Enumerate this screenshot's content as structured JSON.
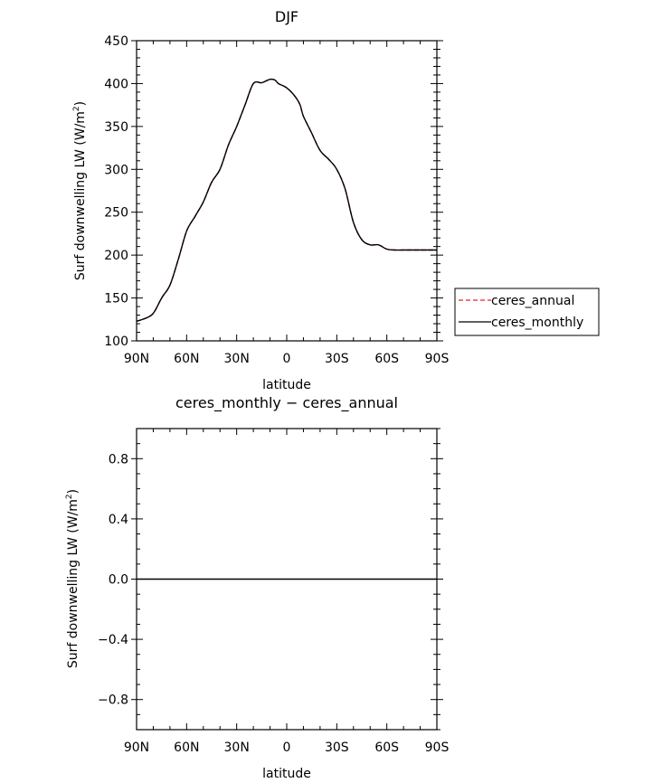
{
  "chart_data": [
    {
      "type": "line",
      "title": "DJF",
      "xlabel": "latitude",
      "ylabel": "Surf downwelling LW (W/m",
      "ylabel_sup": "2",
      "ylabel_close": ")",
      "xlim": [
        90,
        -90
      ],
      "ylim": [
        100,
        450
      ],
      "x_ticks": [
        90,
        60,
        30,
        0,
        -30,
        -60,
        -90
      ],
      "x_tick_labels": [
        "90N",
        "60N",
        "30N",
        "0",
        "30S",
        "60S",
        "90S"
      ],
      "y_ticks": [
        100,
        150,
        200,
        250,
        300,
        350,
        400,
        450
      ],
      "y_tick_labels": [
        "100",
        "150",
        "200",
        "250",
        "300",
        "350",
        "400",
        "450"
      ],
      "legend_placement": "right",
      "x": [
        90,
        85,
        80,
        75,
        70,
        65,
        60,
        55,
        50,
        45,
        40,
        35,
        30,
        25,
        20,
        15,
        10,
        7,
        5,
        0,
        -5,
        -8,
        -10,
        -15,
        -20,
        -25,
        -30,
        -35,
        -40,
        -45,
        -50,
        -55,
        -60,
        -65,
        -70,
        -75,
        -80,
        -85,
        -88,
        -90
      ],
      "series": [
        {
          "name": "ceres_annual",
          "color": "#e8202a",
          "dash": "dashed",
          "values": [
            123,
            126,
            132,
            150,
            165,
            195,
            228,
            245,
            262,
            285,
            300,
            328,
            350,
            375,
            400,
            401,
            405,
            404,
            400,
            395,
            385,
            375,
            362,
            342,
            322,
            312,
            300,
            277,
            238,
            218,
            212,
            212,
            207,
            206,
            206,
            206,
            206,
            206,
            206,
            206
          ]
        },
        {
          "name": "ceres_monthly",
          "color": "#000000",
          "dash": "solid",
          "values": [
            123,
            126,
            132,
            150,
            165,
            195,
            228,
            245,
            262,
            285,
            300,
            328,
            350,
            375,
            400,
            401,
            405,
            404,
            400,
            395,
            385,
            375,
            362,
            342,
            322,
            312,
            300,
            277,
            238,
            218,
            212,
            212,
            207,
            206,
            206,
            206,
            206,
            206,
            206,
            206
          ]
        }
      ]
    },
    {
      "type": "line",
      "title": "ceres_monthly − ceres_annual",
      "xlabel": "latitude",
      "ylabel": "Surf downwelling LW (W/m",
      "ylabel_sup": "2",
      "ylabel_close": ")",
      "xlim": [
        90,
        -90
      ],
      "ylim": [
        -1,
        1
      ],
      "x_ticks": [
        90,
        60,
        30,
        0,
        -30,
        -60,
        -90
      ],
      "x_tick_labels": [
        "90N",
        "60N",
        "30N",
        "0",
        "30S",
        "60S",
        "90S"
      ],
      "y_ticks": [
        -0.8,
        -0.4,
        0.0,
        0.4,
        0.8
      ],
      "y_tick_labels": [
        "−0.8",
        "−0.4",
        "0.0",
        "0.4",
        "0.8"
      ],
      "x": [
        90,
        -90
      ],
      "series": [
        {
          "color": "#000000",
          "dash": "solid",
          "values": [
            0,
            0
          ]
        }
      ]
    }
  ]
}
